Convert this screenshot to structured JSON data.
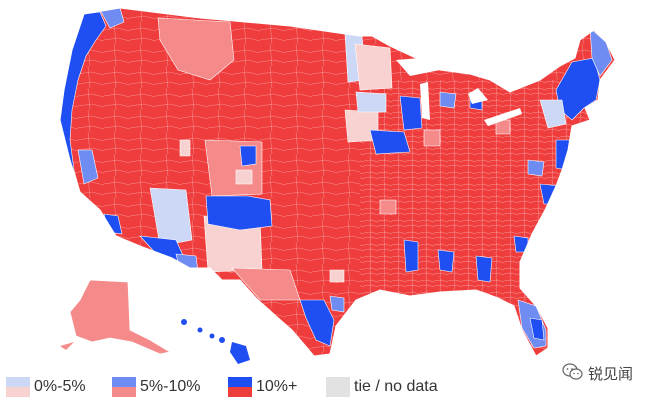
{
  "map": {
    "colors": {
      "dem_strong": "#1f4ff2",
      "dem_medium": "#6f8cf2",
      "dem_light": "#cdd8f6",
      "rep_strong": "#ef3d3d",
      "rep_medium": "#f48a8a",
      "rep_light": "#f8d1d1",
      "tie": "#e2e2e2",
      "boundary": "#ffffff"
    }
  },
  "legend": {
    "items": [
      {
        "label": "0%-5%",
        "top_color": "#cdd8f6",
        "bottom_color": "#f8d1d1"
      },
      {
        "label": "5%-10%",
        "top_color": "#6f8cf2",
        "bottom_color": "#f48a8a"
      },
      {
        "label": "10%+",
        "top_color": "#1f4ff2",
        "bottom_color": "#ef3d3d"
      },
      {
        "label": "tie / no data",
        "color": "#e2e2e2"
      }
    ]
  },
  "watermark": {
    "text": "锐见闻",
    "icon": "wechat-icon"
  }
}
